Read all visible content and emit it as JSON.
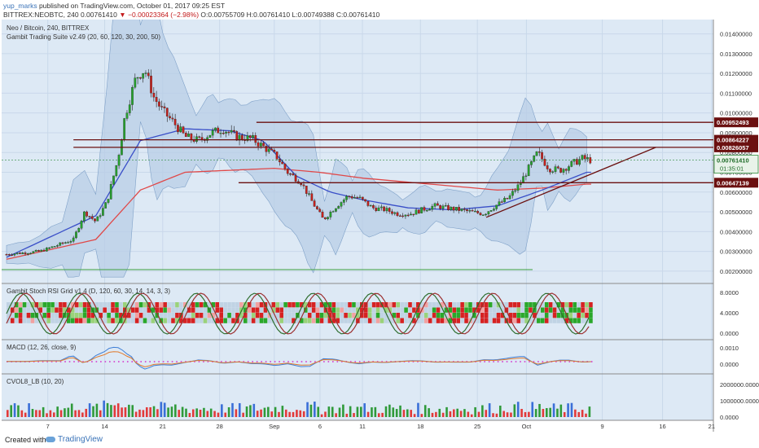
{
  "header": {
    "user": "yup_marks",
    "published": "published on TradingView.com, October 01, 2017 09:25 EST",
    "symbol": "BITTREX:NEOBTC, 240",
    "last": "0.00761410",
    "change": "−0.00023364 (−2.98%)",
    "open": "O:0.00755709",
    "high": "H:0.00761410",
    "low": "L:0.00749388",
    "close": "C:0.00761410"
  },
  "main": {
    "title": "Neo / Bitcoin, 240, BITTREX",
    "indicator": "Gambit Trading Suite v2.49 (20, 60, 120, 30, 200, 50)",
    "y_ticks": [
      "0.01400000",
      "0.01300000",
      "0.01200000",
      "0.01100000",
      "0.01000000",
      "0.00900000",
      "0.00800000",
      "0.00700000",
      "0.00600000",
      "0.00500000",
      "0.00400000",
      "0.00300000",
      "0.00200000"
    ],
    "level_labels": [
      "0.00952493",
      "0.00864227",
      "0.00826057",
      "0.00647139"
    ],
    "price_label": "0.00761410",
    "countdown": "01:35:01"
  },
  "panes": {
    "stoch_title": "Gambit Stoch RSI Grid v1.4 (D, 120, 60, 30, 14, 14, 3, 3)",
    "stoch_ticks": [
      "8.0000",
      "4.0000",
      "0.0000"
    ],
    "macd_title": "MACD (12, 26, close, 9)",
    "macd_ticks": [
      "0.0010",
      "0.0000"
    ],
    "cvol_title": "CVOL8_LB (10, 20)",
    "cvol_ticks": [
      "2000000.0000",
      "1000000.0000",
      "0.0000"
    ]
  },
  "x_axis": [
    "7",
    "14",
    "21",
    "28",
    "Sep",
    "6",
    "11",
    "18",
    "25",
    "Oct",
    "9",
    "16",
    "21"
  ],
  "footer": {
    "created": "Created with",
    "brand": "TradingView"
  },
  "colors": {
    "bg": "#dde9f5",
    "up": "#26a32e",
    "down": "#c6211c",
    "ema_red": "#e04848",
    "ema_blue": "#3a4fc8",
    "band": "#b8cde6",
    "level": "#6b1010",
    "accent": "#3a73b8"
  },
  "chart_data": {
    "type": "candlestick",
    "title": "Neo / Bitcoin, 240, BITTREX",
    "ylim": [
      0.0015,
      0.0146
    ],
    "horizontal_levels": [
      0.00952493,
      0.00864227,
      0.00826057,
      0.00647139
    ],
    "trendline": [
      [
        21.5,
        0.00472
      ],
      [
        29.1,
        0.00826
      ]
    ],
    "x_ticks": [
      "7",
      "14",
      "21",
      "28",
      "Sep",
      "6",
      "11",
      "18",
      "25",
      "Oct",
      "9",
      "16",
      "21"
    ],
    "close_path": [
      [
        0,
        0.00285
      ],
      [
        1.5,
        0.003
      ],
      [
        3,
        0.0036
      ],
      [
        3.5,
        0.005
      ],
      [
        4,
        0.0045
      ],
      [
        4.5,
        0.0055
      ],
      [
        5,
        0.0077
      ],
      [
        5.3,
        0.0098
      ],
      [
        5.8,
        0.0118
      ],
      [
        6.2,
        0.0122
      ],
      [
        6.6,
        0.0108
      ],
      [
        7,
        0.0101
      ],
      [
        7.5,
        0.0095
      ],
      [
        8,
        0.0088
      ],
      [
        8.6,
        0.0086
      ],
      [
        9.2,
        0.009
      ],
      [
        9.7,
        0.0092
      ],
      [
        10.3,
        0.0088
      ],
      [
        11,
        0.0087
      ],
      [
        11.5,
        0.0083
      ],
      [
        12.1,
        0.0078
      ],
      [
        12.6,
        0.007
      ],
      [
        13.2,
        0.0065
      ],
      [
        13.7,
        0.0055
      ],
      [
        14.2,
        0.0046
      ],
      [
        14.7,
        0.0052
      ],
      [
        15.3,
        0.0058
      ],
      [
        15.8,
        0.0057
      ],
      [
        16.4,
        0.0052
      ],
      [
        17,
        0.0051
      ],
      [
        17.5,
        0.0049
      ],
      [
        18.1,
        0.0049
      ],
      [
        18.6,
        0.0051
      ],
      [
        19.2,
        0.0053
      ],
      [
        19.7,
        0.0052
      ],
      [
        20.3,
        0.0051
      ],
      [
        20.8,
        0.005
      ],
      [
        21.4,
        0.0049
      ],
      [
        21.9,
        0.0053
      ],
      [
        22.5,
        0.0057
      ],
      [
        23,
        0.0064
      ],
      [
        23.4,
        0.0072
      ],
      [
        23.8,
        0.008
      ],
      [
        24.3,
        0.0072
      ],
      [
        24.8,
        0.0071
      ],
      [
        25.3,
        0.0074
      ],
      [
        25.8,
        0.0077
      ],
      [
        26.2,
        0.00761
      ]
    ],
    "series": [
      {
        "name": "EMA (red)",
        "values": [
          [
            0,
            0.0026
          ],
          [
            4,
            0.0036
          ],
          [
            6,
            0.0061
          ],
          [
            8,
            0.007
          ],
          [
            10,
            0.0071
          ],
          [
            12,
            0.0072
          ],
          [
            14,
            0.007
          ],
          [
            16,
            0.0067
          ],
          [
            18,
            0.0065
          ],
          [
            20,
            0.0063
          ],
          [
            22,
            0.0061
          ],
          [
            24,
            0.0062
          ],
          [
            26,
            0.0064
          ]
        ]
      },
      {
        "name": "EMA (blue)",
        "values": [
          [
            0,
            0.0027
          ],
          [
            4,
            0.0048
          ],
          [
            6,
            0.0086
          ],
          [
            8,
            0.0092
          ],
          [
            10,
            0.0091
          ],
          [
            11.5,
            0.0086
          ],
          [
            13,
            0.0068
          ],
          [
            14.5,
            0.006
          ],
          [
            16,
            0.0056
          ],
          [
            18,
            0.0052
          ],
          [
            20,
            0.0051
          ],
          [
            22,
            0.0053
          ],
          [
            24,
            0.0061
          ],
          [
            26,
            0.007
          ]
        ]
      }
    ]
  }
}
